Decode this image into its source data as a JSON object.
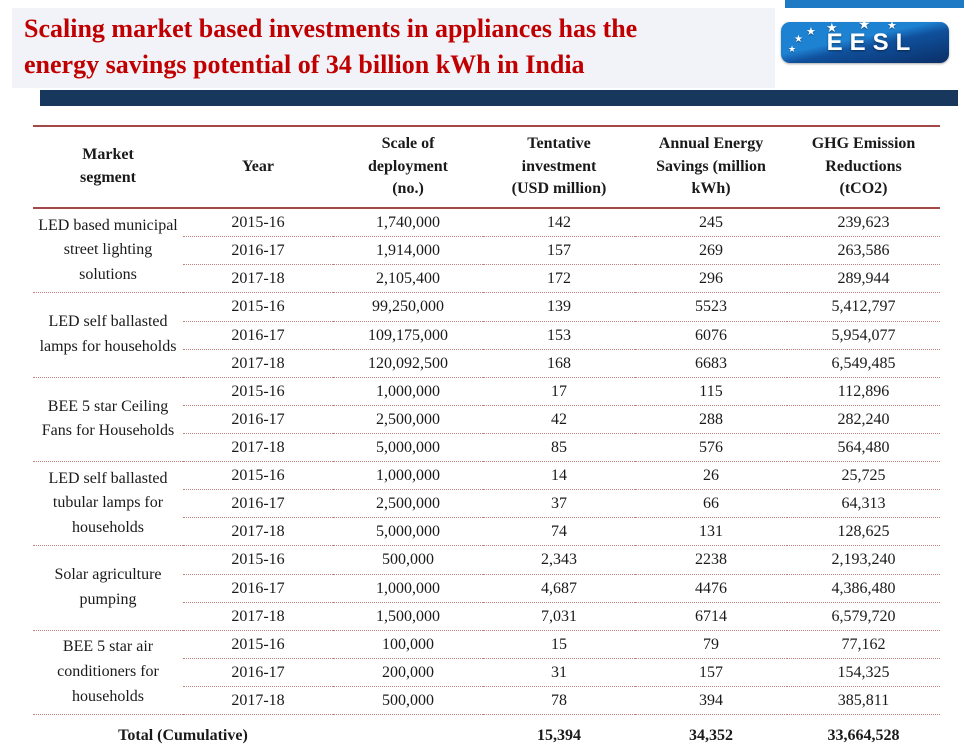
{
  "header": {
    "title_line1": "Scaling market based investments in appliances has the",
    "title_line2": "energy savings potential of 34 billion kWh in India",
    "logo_text": "EESL"
  },
  "colors": {
    "accent_red": "#c00000",
    "navy_bar": "#17375d",
    "header_bg": "#f2f3f8",
    "line_solid": "#a34a48",
    "line_dotted": "#c37f7d",
    "strip_blue": "#1e7ac5",
    "logo_top": "#1e82d2",
    "logo_bottom": "#0a2e66",
    "text": "#1a1a1a"
  },
  "table": {
    "columns": [
      {
        "id": "market-segment",
        "lines": [
          "Market",
          "segment"
        ]
      },
      {
        "id": "year",
        "lines": [
          "Year"
        ]
      },
      {
        "id": "deployment",
        "lines": [
          "Scale of",
          "deployment",
          "(no.)"
        ]
      },
      {
        "id": "investment",
        "lines": [
          "Tentative",
          "investment",
          "(USD million)"
        ]
      },
      {
        "id": "savings",
        "lines": [
          "Annual Energy",
          "Savings (million",
          "kWh)"
        ]
      },
      {
        "id": "ghg",
        "lines": [
          "GHG Emission",
          "Reductions",
          "(tCO2)"
        ]
      }
    ],
    "groups": [
      {
        "segment": "LED based municipal street lighting solutions",
        "rows": [
          {
            "year": "2015-16",
            "deployment": "1,740,000",
            "investment": "142",
            "savings": "245",
            "ghg": "239,623"
          },
          {
            "year": "2016-17",
            "deployment": "1,914,000",
            "investment": "157",
            "savings": "269",
            "ghg": "263,586"
          },
          {
            "year": "2017-18",
            "deployment": "2,105,400",
            "investment": "172",
            "savings": "296",
            "ghg": "289,944"
          }
        ]
      },
      {
        "segment": "LED self ballasted lamps for households",
        "rows": [
          {
            "year": "2015-16",
            "deployment": "99,250,000",
            "investment": "139",
            "savings": "5523",
            "ghg": "5,412,797"
          },
          {
            "year": "2016-17",
            "deployment": "109,175,000",
            "investment": "153",
            "savings": "6076",
            "ghg": "5,954,077"
          },
          {
            "year": "2017-18",
            "deployment": "120,092,500",
            "investment": "168",
            "savings": "6683",
            "ghg": "6,549,485"
          }
        ]
      },
      {
        "segment": "BEE 5 star Ceiling Fans for Households",
        "rows": [
          {
            "year": "2015-16",
            "deployment": "1,000,000",
            "investment": "17",
            "savings": "115",
            "ghg": "112,896"
          },
          {
            "year": "2016-17",
            "deployment": "2,500,000",
            "investment": "42",
            "savings": "288",
            "ghg": "282,240"
          },
          {
            "year": "2017-18",
            "deployment": "5,000,000",
            "investment": "85",
            "savings": "576",
            "ghg": "564,480"
          }
        ]
      },
      {
        "segment": "LED self ballasted tubular lamps for households",
        "rows": [
          {
            "year": "2015-16",
            "deployment": "1,000,000",
            "investment": "14",
            "savings": "26",
            "ghg": "25,725"
          },
          {
            "year": "2016-17",
            "deployment": "2,500,000",
            "investment": "37",
            "savings": "66",
            "ghg": "64,313"
          },
          {
            "year": "2017-18",
            "deployment": "5,000,000",
            "investment": "74",
            "savings": "131",
            "ghg": "128,625"
          }
        ]
      },
      {
        "segment": "Solar agriculture pumping",
        "rows": [
          {
            "year": "2015-16",
            "deployment": "500,000",
            "investment": "2,343",
            "savings": "2238",
            "ghg": "2,193,240"
          },
          {
            "year": "2016-17",
            "deployment": "1,000,000",
            "investment": "4,687",
            "savings": "4476",
            "ghg": "4,386,480"
          },
          {
            "year": "2017-18",
            "deployment": "1,500,000",
            "investment": "7,031",
            "savings": "6714",
            "ghg": "6,579,720"
          }
        ]
      },
      {
        "segment": "BEE 5 star air conditioners for households",
        "rows": [
          {
            "year": "2015-16",
            "deployment": "100,000",
            "investment": "15",
            "savings": "79",
            "ghg": "77,162"
          },
          {
            "year": "2016-17",
            "deployment": "200,000",
            "investment": "31",
            "savings": "157",
            "ghg": "154,325"
          },
          {
            "year": "2017-18",
            "deployment": "500,000",
            "investment": "78",
            "savings": "394",
            "ghg": "385,811"
          }
        ]
      }
    ],
    "total": {
      "label": "Total (Cumulative)",
      "deployment": "",
      "investment": "15,394",
      "savings": "34,352",
      "ghg": "33,664,528"
    }
  }
}
